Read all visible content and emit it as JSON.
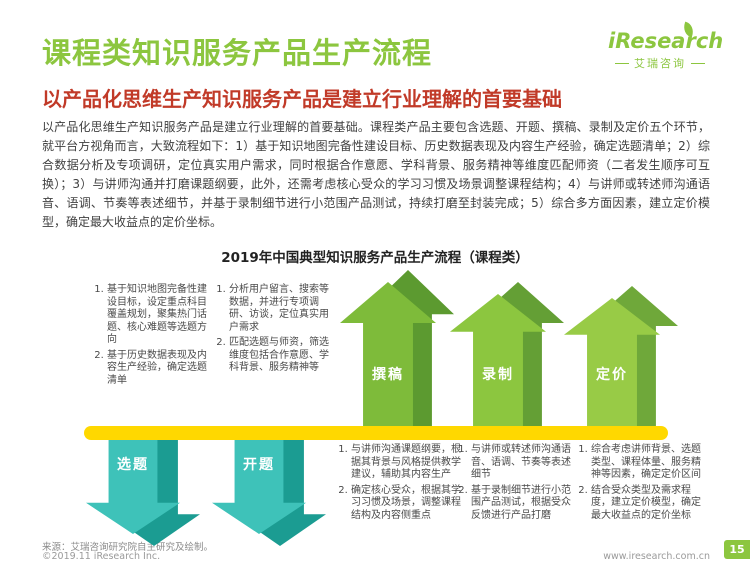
{
  "header": {
    "title": "课程类知识服务产品生产流程",
    "subtitle": "以产品化思维生产知识服务产品是建立行业理解的首要基础"
  },
  "logo": {
    "name": "iResearch",
    "cn": "艾瑞咨询"
  },
  "body": {
    "paragraph": "以产品化思维生产知识服务产品是建立行业理解的首要基础。课程类产品主要包含选题、开题、撰稿、录制及定价五个环节，就平台方视角而言，大致流程如下：1）基于知识地图完备性建设目标、历史数据表现及内容生产经验，确定选题清单；2）综合数据分析及专项调研，定位真实用户需求，同时根据合作意愿、学科背景、服务精神等维度匹配师资（二者发生顺序可互换）；3）与讲师沟通并打磨课题纲要，此外，还需考虑核心受众的学习习惯及场景调整课程结构；4）与讲师或转述师沟通语音、语调、节奏等表述细节，并基于录制细节进行小范围产品测试，持续打磨至封装完成；5）综合多方面因素，建立定价模型，确定最大收益点的定价坐标。"
  },
  "diagram": {
    "title": "2019年中国典型知识服务产品生产流程（课程类）",
    "stages": [
      {
        "label": "选题",
        "direction": "down",
        "items": [
          "基于知识地图完备性建设目标，设定重点科目覆盖规划，聚集热门话题、核心难题等选题方向",
          "基于历史数据表现及内容生产经验，确定选题清单"
        ]
      },
      {
        "label": "开题",
        "direction": "down",
        "items": [
          "分析用户留言、搜索等数据，并进行专项调研、访谈，定位真实用户需求",
          "匹配选题与师资，筛选维度包括合作意愿、学科背景、服务精神等"
        ]
      },
      {
        "label": "撰稿",
        "direction": "up",
        "items": [
          "与讲师沟通课题纲要，根据其背景与风格提供教学建议，辅助其内容生产",
          "确定核心受众，根据其学习习惯及场景，调整课程结构及内容侧重点"
        ]
      },
      {
        "label": "录制",
        "direction": "up",
        "items": [
          "与讲师或转述师沟通语音、语调、节奏等表述细节",
          "基于录制细节进行小范围产品测试，根据受众反馈进行产品打磨"
        ]
      },
      {
        "label": "定价",
        "direction": "up",
        "items": [
          "综合考虑讲师背景、选题类型、课程体量、服务精神等因素，确定定价区间",
          "结合受众类型及需求程度，建立定价模型，确定最大收益点的定价坐标"
        ]
      }
    ]
  },
  "source": {
    "note": "来源：艾瑞咨询研究院自主研究及绘制。"
  },
  "footer": {
    "copyright": "©2019.11 iResearch Inc.",
    "website": "www.iresearch.com.cn",
    "page_number": "15"
  },
  "colors": {
    "brand_green": "#8CC63F",
    "dark_green": "#5C9A30",
    "teal": "#3EC2B9",
    "dark_teal": "#1B9C92",
    "yellow": "#FFD800",
    "accent_red": "#C13A28"
  }
}
